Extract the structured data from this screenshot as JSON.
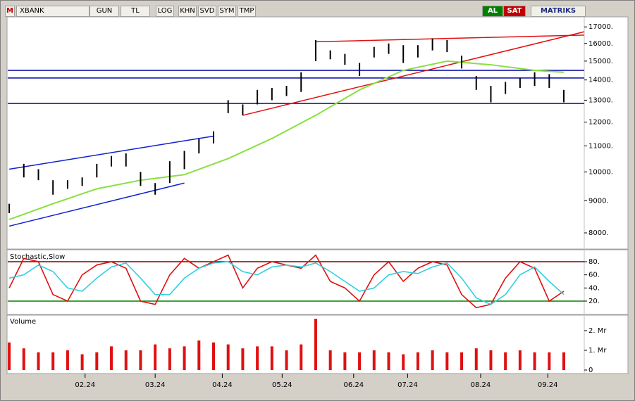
{
  "toolbar": {
    "logo": "M",
    "symbol": "XBANK",
    "buttons": [
      "GUN",
      "TL",
      "LOG",
      "KHN",
      "SVD",
      "SYM",
      "TMP"
    ],
    "buy": "AL",
    "sell": "SAT",
    "brand": "MATRIKS"
  },
  "chart_data": [
    {
      "type": "hilo",
      "log_scale": true,
      "xlim": [
        -0.1,
        39.4
      ],
      "ylim": [
        7560,
        17680
      ],
      "yticks": [
        {
          "value": 17000,
          "label": "17000."
        },
        {
          "value": 16000,
          "label": "16000."
        },
        {
          "value": 15000,
          "label": "15000."
        },
        {
          "value": 14000,
          "label": "14000."
        },
        {
          "value": 13000,
          "label": "13000."
        },
        {
          "value": 12000,
          "label": "12000."
        },
        {
          "value": 11000,
          "label": "11000."
        },
        {
          "value": 10000,
          "label": "10000."
        },
        {
          "value": 9000,
          "label": "9000."
        },
        {
          "value": 8000,
          "label": "8000."
        }
      ],
      "x": [
        0,
        1,
        2,
        3,
        4,
        5,
        6,
        7,
        8,
        9,
        10,
        11,
        12,
        13,
        14,
        15,
        16,
        17,
        18,
        19,
        20,
        21,
        22,
        23,
        24,
        25,
        26,
        27,
        28,
        29,
        30,
        31,
        32,
        33,
        34,
        35,
        36,
        37,
        38
      ],
      "color": "#000000",
      "low": [
        8600,
        9800,
        9700,
        9200,
        9400,
        9500,
        9800,
        10200,
        10200,
        9500,
        9200,
        9600,
        10100,
        10700,
        11100,
        12400,
        12300,
        12800,
        13000,
        13200,
        13400,
        15000,
        15100,
        14800,
        14200,
        15200,
        15400,
        14900,
        15200,
        15600,
        15500,
        14600,
        13500,
        12900,
        13300,
        13600,
        13700,
        13600,
        12900
      ],
      "high": [
        8900,
        10300,
        10100,
        9700,
        9700,
        9800,
        10300,
        10600,
        10700,
        10000,
        9600,
        10400,
        10800,
        11300,
        11600,
        13000,
        12800,
        13500,
        13600,
        13700,
        14400,
        16200,
        15600,
        15400,
        14900,
        15800,
        16000,
        15900,
        15900,
        16300,
        16200,
        15300,
        14200,
        13700,
        13900,
        14100,
        14400,
        14300,
        13500
      ],
      "ma": {
        "color": "#88e040",
        "x": [
          0,
          3,
          6,
          9,
          12,
          15,
          18,
          21,
          24,
          27,
          30,
          33,
          36,
          38
        ],
        "values": [
          8400,
          8900,
          9400,
          9700,
          9900,
          10500,
          11300,
          12300,
          13500,
          14500,
          15000,
          14800,
          14500,
          14400
        ]
      },
      "levels": [
        {
          "value": 14500,
          "color": "#0000a0"
        },
        {
          "value": 14100,
          "color": "#0000a0"
        },
        {
          "value": 12850,
          "color": "#0000a0"
        }
      ],
      "trend_lines": [
        {
          "color": "#e01010",
          "x": [
            16,
            39.4
          ],
          "y": [
            12300,
            16700
          ]
        },
        {
          "color": "#e01010",
          "x": [
            21,
            39.4
          ],
          "y": [
            16100,
            16500
          ]
        },
        {
          "color": "#1020d0",
          "x": [
            0,
            14
          ],
          "y": [
            10100,
            11400
          ]
        },
        {
          "color": "#1020d0",
          "x": [
            0,
            12
          ],
          "y": [
            8200,
            9600
          ]
        }
      ]
    },
    {
      "type": "line",
      "title": "Stochastic,Slow",
      "xlim": [
        -0.1,
        39.4
      ],
      "ylim": [
        1.8,
        98.2
      ],
      "yticks": [
        {
          "value": 80,
          "label": "80."
        },
        {
          "value": 60,
          "label": "60."
        },
        {
          "value": 40,
          "label": "40."
        },
        {
          "value": 20,
          "label": "20."
        }
      ],
      "levels": [
        {
          "value": 80,
          "color": "#800000"
        },
        {
          "value": 20,
          "color": "#008000"
        }
      ],
      "x": [
        0,
        1,
        2,
        3,
        4,
        5,
        6,
        7,
        8,
        9,
        10,
        11,
        12,
        13,
        14,
        15,
        16,
        17,
        18,
        19,
        20,
        21,
        22,
        23,
        24,
        25,
        26,
        27,
        28,
        29,
        30,
        31,
        32,
        33,
        34,
        35,
        36,
        37,
        38
      ],
      "series": [
        {
          "color": "#e01010",
          "values": [
            40,
            85,
            80,
            30,
            20,
            60,
            75,
            80,
            70,
            20,
            15,
            60,
            85,
            70,
            80,
            90,
            40,
            70,
            80,
            75,
            70,
            90,
            50,
            40,
            20,
            60,
            80,
            50,
            70,
            80,
            75,
            30,
            10,
            15,
            55,
            80,
            70,
            20,
            35
          ]
        },
        {
          "color": "#30d0e0",
          "values": [
            55,
            60,
            75,
            65,
            40,
            35,
            55,
            72,
            78,
            55,
            30,
            30,
            55,
            70,
            78,
            80,
            65,
            60,
            72,
            75,
            72,
            78,
            65,
            50,
            35,
            40,
            60,
            65,
            62,
            72,
            78,
            55,
            25,
            15,
            30,
            60,
            72,
            50,
            30
          ]
        }
      ]
    },
    {
      "type": "bar",
      "title": "Volume",
      "xlim": [
        -0.1,
        39.4
      ],
      "ylim": [
        0,
        2640000
      ],
      "color": "#e01010",
      "yticks": [
        {
          "value": 2000000,
          "label": "2. Mr"
        },
        {
          "value": 1000000,
          "label": "1. Mr"
        },
        0
      ],
      "xticks": [
        {
          "value": 5.2,
          "label": "02.24"
        },
        {
          "value": 10.0,
          "label": "03.24"
        },
        {
          "value": 14.6,
          "label": "04.24"
        },
        {
          "value": 18.7,
          "label": "05.24"
        },
        {
          "value": 23.6,
          "label": "06.24"
        },
        {
          "value": 27.3,
          "label": "07.24"
        },
        {
          "value": 32.3,
          "label": "08.24"
        },
        {
          "value": 36.9,
          "label": "09.24"
        }
      ],
      "x": [
        0,
        1,
        2,
        3,
        4,
        5,
        6,
        7,
        8,
        9,
        10,
        11,
        12,
        13,
        14,
        15,
        16,
        17,
        18,
        19,
        20,
        21,
        22,
        23,
        24,
        25,
        26,
        27,
        28,
        29,
        30,
        31,
        32,
        33,
        34,
        35,
        36,
        37,
        38
      ],
      "values": [
        1400000,
        1100000,
        900000,
        900000,
        1000000,
        800000,
        900000,
        1200000,
        1000000,
        1000000,
        1300000,
        1100000,
        1200000,
        1500000,
        1400000,
        1300000,
        1100000,
        1200000,
        1200000,
        1000000,
        1300000,
        2600000,
        1000000,
        900000,
        900000,
        1000000,
        900000,
        800000,
        900000,
        1000000,
        900000,
        900000,
        1100000,
        1000000,
        900000,
        1000000,
        900000,
        900000,
        900000
      ]
    }
  ]
}
